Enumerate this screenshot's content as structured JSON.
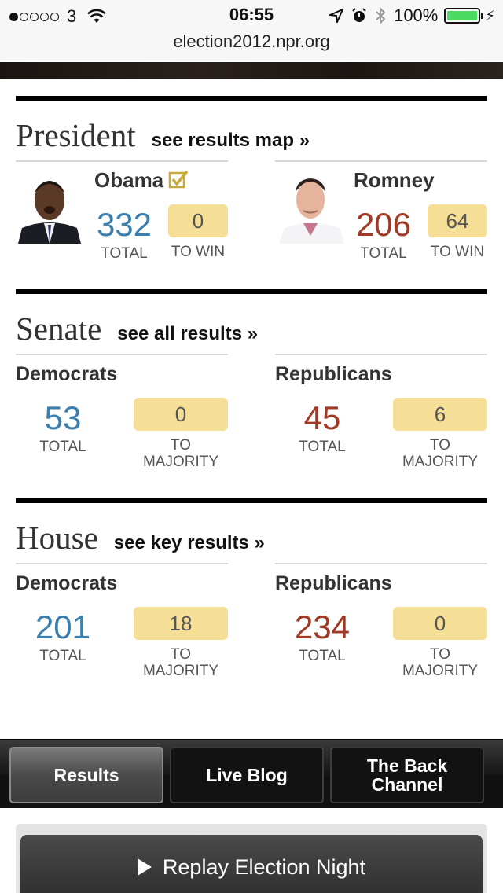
{
  "status_bar": {
    "carrier": "3",
    "time": "06:55",
    "battery": "100%",
    "url": "election2012.npr.org"
  },
  "president": {
    "title": "President",
    "link": "see results map »",
    "candidates": [
      {
        "name": "Obama",
        "total": "332",
        "total_label": "TOTAL",
        "to_win": "0",
        "to_win_label": "TO WIN",
        "winner": true,
        "color": "#3b7fae"
      },
      {
        "name": "Romney",
        "total": "206",
        "total_label": "TOTAL",
        "to_win": "64",
        "to_win_label": "TO WIN",
        "winner": false,
        "color": "#a13a24"
      }
    ]
  },
  "senate": {
    "title": "Senate",
    "link": "see all results »",
    "parties": [
      {
        "name": "Democrats",
        "total": "53",
        "total_label": "TOTAL",
        "to_majority": "0",
        "to_majority_label_1": "TO",
        "to_majority_label_2": "MAJORITY"
      },
      {
        "name": "Republicans",
        "total": "45",
        "total_label": "TOTAL",
        "to_majority": "6",
        "to_majority_label_1": "TO",
        "to_majority_label_2": "MAJORITY"
      }
    ]
  },
  "house": {
    "title": "House",
    "link": "see key results »",
    "parties": [
      {
        "name": "Democrats",
        "total": "201",
        "total_label": "TOTAL",
        "to_majority": "18",
        "to_majority_label_1": "TO",
        "to_majority_label_2": "MAJORITY"
      },
      {
        "name": "Republicans",
        "total": "234",
        "total_label": "TOTAL",
        "to_majority": "0",
        "to_majority_label_1": "TO",
        "to_majority_label_2": "MAJORITY"
      }
    ]
  },
  "tabs": [
    {
      "label": "Results",
      "active": true
    },
    {
      "label": "Live Blog",
      "active": false
    },
    {
      "label": "The Back Channel",
      "active": false
    }
  ],
  "replay_button": "Replay Election Night",
  "colors": {
    "democrat": "#3b7fae",
    "republican": "#a13a24",
    "badge": "#f5df97"
  }
}
